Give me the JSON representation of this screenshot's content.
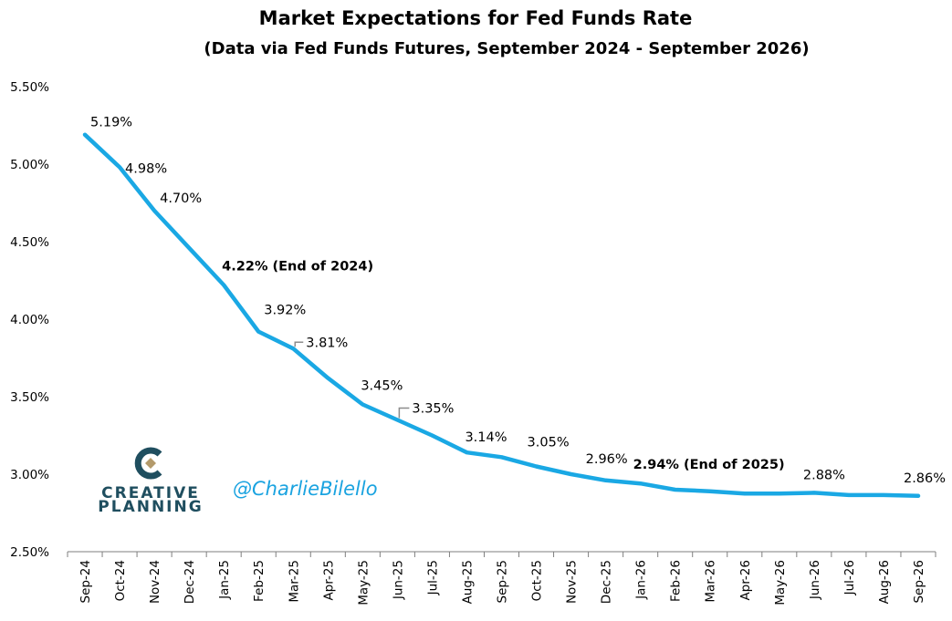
{
  "chart_data": {
    "type": "line",
    "title": "Market Expectations for Fed Funds Rate",
    "subtitle": "(Data via Fed Funds Futures, September 2024 - September 2026)",
    "xlabel": "",
    "ylabel": "",
    "ylim": [
      2.5,
      5.5
    ],
    "yticks": [
      "2.50%",
      "3.00%",
      "3.50%",
      "4.00%",
      "4.50%",
      "5.00%",
      "5.50%"
    ],
    "ytick_values": [
      2.5,
      3.0,
      3.5,
      4.0,
      4.5,
      5.0,
      5.5
    ],
    "grid": false,
    "categories": [
      "Sep-24",
      "Oct-24",
      "Nov-24",
      "Dec-24",
      "Jan-25",
      "Feb-25",
      "Mar-25",
      "Apr-25",
      "May-25",
      "Jun-25",
      "Jul-25",
      "Aug-25",
      "Sep-25",
      "Oct-25",
      "Nov-25",
      "Dec-25",
      "Jan-26",
      "Feb-26",
      "Mar-26",
      "Apr-26",
      "May-26",
      "Jun-26",
      "Jul-26",
      "Aug-26",
      "Sep-26"
    ],
    "series": [
      {
        "color": "#1aa8e4",
        "values": [
          5.19,
          4.98,
          4.7,
          4.46,
          4.22,
          3.92,
          3.81,
          3.62,
          3.45,
          3.35,
          3.25,
          3.14,
          3.11,
          3.05,
          3.0,
          2.96,
          2.94,
          2.9,
          2.89,
          2.875,
          2.875,
          2.88,
          2.865,
          2.865,
          2.86
        ]
      }
    ],
    "annotations": [
      {
        "index": 0,
        "text": "5.19%",
        "bold": false
      },
      {
        "index": 1,
        "text": "4.98%",
        "bold": false
      },
      {
        "index": 2,
        "text": "4.70%",
        "bold": false
      },
      {
        "index": 4,
        "text": "4.22% (End of 2024)",
        "bold": true
      },
      {
        "index": 5,
        "text": "3.92%",
        "bold": false
      },
      {
        "index": 6,
        "text": "3.81%",
        "bold": false
      },
      {
        "index": 8,
        "text": "3.45%",
        "bold": false
      },
      {
        "index": 9,
        "text": "3.35%",
        "bold": false
      },
      {
        "index": 11,
        "text": "3.14%",
        "bold": false
      },
      {
        "index": 13,
        "text": "3.05%",
        "bold": false
      },
      {
        "index": 15,
        "text": "2.96%",
        "bold": false
      },
      {
        "index": 16,
        "text": "2.94% (End of 2025)",
        "bold": true
      },
      {
        "index": 21,
        "text": "2.88%",
        "bold": false
      },
      {
        "index": 24,
        "text": "2.86%",
        "bold": false
      }
    ]
  },
  "branding": {
    "logo_line1": "CREATIVE",
    "logo_line2": "PLANNING",
    "logo_mark_color": "#1f4e5f",
    "logo_accent_color": "#b39a6b",
    "handle": "@CharlieBilello"
  }
}
